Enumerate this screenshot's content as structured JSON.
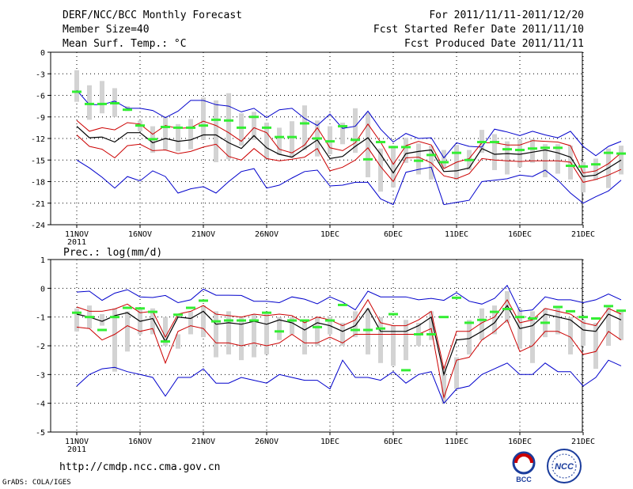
{
  "header": {
    "title": "DERF/NCC/BCC Monthly Forecast",
    "member_size": "Member Size=40",
    "variable_top": "Mean Surf. Temp.: °C",
    "period": "For 2011/11/11-2011/12/20",
    "started": "Fcst Started Refer Date 2011/11/10",
    "produced": "Fcst Produced Date 2011/11/11"
  },
  "footer": {
    "url": "http://cmdp.ncc.cma.gov.cn",
    "credit": "GrADS: COLA/IGES",
    "logo_bcc": "BCC",
    "logo_ncc": "NCC"
  },
  "colors": {
    "mean": "#000000",
    "sd": "#cc0000",
    "extreme": "#0000cc",
    "box": "#d3d3d3",
    "observed": "#33ee33"
  },
  "chart_data": [
    {
      "type": "line",
      "title": "Mean Surf. Temp.: °C",
      "xticks": [
        "11NOV",
        "16NOV",
        "21NOV",
        "26NOV",
        "1DEC",
        "6DEC",
        "11DEC",
        "16DEC",
        "21DEC"
      ],
      "xtick_year": "2011",
      "ylim": [
        -24,
        0
      ],
      "yticks": [
        0,
        -3,
        -6,
        -9,
        -12,
        -15,
        -18,
        -21,
        -24
      ],
      "grid": true,
      "series": [
        {
          "name": "max",
          "values": [
            -5.3,
            -7.3,
            -7.3,
            -6.8,
            -7.8,
            -7.8,
            -8.1,
            -9.1,
            -8.2,
            -6.7,
            -6.7,
            -7.3,
            -7.5,
            -8.3,
            -7.8,
            -9.1,
            -8.0,
            -7.8,
            -9.2,
            -10.2,
            -8.6,
            -10.6,
            -10.3,
            -8.2,
            -10.7,
            -12.5,
            -11.3,
            -12.0,
            -11.9,
            -14.7,
            -12.6,
            -13.1,
            -13.2,
            -10.7,
            -11.1,
            -11.6,
            -11.0,
            -11.5,
            -11.9,
            -11.0,
            -13.1,
            -14.4,
            -13.1,
            -12.4
          ]
        },
        {
          "name": "mean_plus_sd",
          "values": [
            -9.5,
            -11.0,
            -10.5,
            -10.8,
            -9.8,
            -10.0,
            -11.4,
            -10.2,
            -10.6,
            -10.5,
            -9.6,
            -10.2,
            -11.2,
            -12.4,
            -10.5,
            -11.2,
            -13.5,
            -14.0,
            -12.9,
            -10.5,
            -13.3,
            -13.7,
            -12.6,
            -10.0,
            -12.5,
            -15.6,
            -13.0,
            -12.4,
            -12.9,
            -16.2,
            -15.3,
            -14.8,
            -12.6,
            -12.6,
            -12.9,
            -12.9,
            -12.3,
            -12.4,
            -12.5,
            -13.0,
            -16.8,
            -16.5,
            -15.5,
            -14.0
          ]
        },
        {
          "name": "mean",
          "values": [
            -10.3,
            -11.9,
            -11.8,
            -12.5,
            -11.2,
            -11.2,
            -12.6,
            -12.0,
            -12.4,
            -12.2,
            -11.5,
            -11.5,
            -12.6,
            -13.4,
            -11.6,
            -13.3,
            -14.2,
            -14.6,
            -13.4,
            -12.2,
            -14.8,
            -14.5,
            -13.1,
            -11.9,
            -14.2,
            -16.8,
            -14.1,
            -13.8,
            -13.6,
            -16.6,
            -16.5,
            -16.1,
            -13.4,
            -14.2,
            -14.1,
            -14.2,
            -13.9,
            -13.6,
            -14.0,
            -14.6,
            -17.3,
            -17.1,
            -16.1,
            -15.0
          ]
        },
        {
          "name": "mean_minus_sd",
          "values": [
            -11.5,
            -13.1,
            -13.5,
            -14.7,
            -13.0,
            -12.8,
            -13.7,
            -13.6,
            -14.1,
            -13.8,
            -13.2,
            -12.8,
            -14.5,
            -15.0,
            -13.4,
            -14.8,
            -15.1,
            -14.9,
            -14.6,
            -13.4,
            -16.5,
            -16.0,
            -15.0,
            -13.3,
            -15.9,
            -18.0,
            -14.7,
            -14.6,
            -15.4,
            -17.2,
            -17.6,
            -16.9,
            -14.8,
            -15.0,
            -15.1,
            -15.2,
            -15.1,
            -15.1,
            -15.1,
            -15.3,
            -18.1,
            -17.7,
            -17.1,
            -16.3
          ]
        },
        {
          "name": "min",
          "values": [
            -15.0,
            -16.1,
            -17.4,
            -18.9,
            -17.3,
            -17.9,
            -16.5,
            -17.3,
            -19.6,
            -19.0,
            -18.7,
            -19.6,
            -18.0,
            -16.6,
            -16.2,
            -18.9,
            -18.5,
            -17.5,
            -16.6,
            -16.4,
            -18.6,
            -18.5,
            -18.1,
            -18.1,
            -20.4,
            -21.2,
            -16.7,
            -16.3,
            -16.0,
            -21.2,
            -20.9,
            -20.6,
            -18.0,
            -17.8,
            -17.6,
            -17.1,
            -17.3,
            -16.4,
            -17.8,
            -19.6,
            -21.0,
            -20.1,
            -19.3,
            -17.8
          ]
        },
        {
          "name": "observed",
          "values": [
            -5.5,
            -7.2,
            -7.2,
            -7.1,
            -8.0,
            -10.2,
            -12.1,
            -10.4,
            -10.5,
            -10.5,
            -10.2,
            -9.4,
            -9.5,
            -10.5,
            -9.0,
            -10.5,
            -11.8,
            -11.8,
            -9.9,
            -12.0,
            -12.4,
            -10.3,
            -12.2,
            -14.9,
            -12.5,
            -13.2,
            -13.2,
            -15.1,
            -14.3,
            -15.3,
            -14.0,
            -15.0,
            -12.5,
            -12.5,
            -13.5,
            -13.6,
            -13.4,
            -13.3,
            -13.3,
            -15.8,
            -15.9,
            -15.6,
            -14.0,
            -14.1
          ]
        }
      ],
      "boxes": [
        [
          -2.5,
          -6.9
        ],
        [
          -4.6,
          -9.4
        ],
        [
          -4.0,
          -8.5
        ],
        [
          -5.0,
          -9.0
        ],
        [
          -7.5,
          -8.2
        ],
        [
          -9.5,
          -11.0
        ],
        [
          -10.3,
          -14.0
        ],
        [
          -8.9,
          -13.6
        ],
        [
          -10.0,
          -13.8
        ],
        [
          -9.3,
          -13.5
        ],
        [
          -6.3,
          -12.2
        ],
        [
          -6.7,
          -15.3
        ],
        [
          -5.7,
          -14.9
        ],
        [
          -8.5,
          -13.0
        ],
        [
          -8.3,
          -12.2
        ],
        [
          -9.8,
          -14.9
        ],
        [
          -10.5,
          -14.3
        ],
        [
          -9.6,
          -14.7
        ],
        [
          -7.4,
          -13.6
        ],
        [
          -9.5,
          -14.5
        ],
        [
          -10.3,
          -14.2
        ],
        [
          -9.8,
          -12.8
        ],
        [
          -7.8,
          -14.0
        ],
        [
          -8.4,
          -17.4
        ],
        [
          -13.4,
          -19.4
        ],
        [
          -13.0,
          -18.8
        ],
        [
          -11.9,
          -15.4
        ],
        [
          -12.7,
          -17.0
        ],
        [
          -13.0,
          -17.7
        ],
        [
          -13.6,
          -16.1
        ],
        [
          -12.9,
          -17.8
        ],
        [
          -13.6,
          -16.4
        ],
        [
          -10.8,
          -14.0
        ],
        [
          -11.4,
          -16.4
        ],
        [
          -12.4,
          -17.0
        ],
        [
          -12.2,
          -16.0
        ],
        [
          -12.1,
          -15.4
        ],
        [
          -12.8,
          -17.4
        ],
        [
          -12.8,
          -16.9
        ],
        [
          -13.0,
          -17.7
        ],
        [
          -15.3,
          -19.5
        ],
        [
          -14.8,
          -17.8
        ],
        [
          -13.4,
          -18.9
        ],
        [
          -13.0,
          -17.0
        ]
      ]
    },
    {
      "type": "line",
      "title": "Prec.: log(mm/d)",
      "xticks": [
        "11NOV",
        "16NOV",
        "21NOV",
        "26NOV",
        "1DEC",
        "6DEC",
        "11DEC",
        "16DEC",
        "21DEC"
      ],
      "xtick_year": "2011",
      "ylim": [
        -5,
        1
      ],
      "yticks": [
        1,
        0,
        -1,
        -2,
        -3,
        -4,
        -5
      ],
      "grid": true,
      "series": [
        {
          "name": "max",
          "values": [
            -0.13,
            -0.1,
            -0.42,
            -0.17,
            -0.05,
            -0.3,
            -0.32,
            -0.25,
            -0.5,
            -0.4,
            -0.03,
            -0.24,
            -0.24,
            -0.25,
            -0.45,
            -0.45,
            -0.5,
            -0.3,
            -0.38,
            -0.54,
            -0.3,
            -0.48,
            -0.75,
            -0.1,
            -0.3,
            -0.3,
            -0.3,
            -0.4,
            -0.35,
            -0.42,
            -0.15,
            -0.45,
            -0.55,
            -0.35,
            0.1,
            -0.8,
            -0.75,
            -0.3,
            -0.4,
            -0.4,
            -0.5,
            -0.4,
            -0.2,
            -0.4
          ]
        },
        {
          "name": "mean_plus_sd",
          "values": [
            -0.65,
            -0.8,
            -0.8,
            -0.72,
            -0.55,
            -0.85,
            -0.8,
            -1.7,
            -0.9,
            -0.8,
            -0.6,
            -0.9,
            -0.95,
            -1.0,
            -0.9,
            -0.95,
            -0.9,
            -0.95,
            -1.2,
            -1.0,
            -1.1,
            -1.3,
            -1.1,
            -0.4,
            -1.2,
            -1.3,
            -1.3,
            -1.1,
            -0.8,
            -2.8,
            -1.5,
            -1.5,
            -1.2,
            -1.0,
            -0.4,
            -1.2,
            -1.1,
            -0.7,
            -0.8,
            -0.9,
            -1.2,
            -1.3,
            -0.7,
            -0.9
          ]
        },
        {
          "name": "mean",
          "values": [
            -0.9,
            -1.0,
            -1.15,
            -0.95,
            -0.85,
            -1.15,
            -1.05,
            -1.85,
            -1.0,
            -1.05,
            -0.8,
            -1.25,
            -1.2,
            -1.25,
            -1.15,
            -1.25,
            -1.1,
            -1.2,
            -1.45,
            -1.2,
            -1.3,
            -1.5,
            -1.3,
            -0.7,
            -1.5,
            -1.5,
            -1.5,
            -1.3,
            -1.0,
            -3.0,
            -1.8,
            -1.75,
            -1.5,
            -1.2,
            -0.6,
            -1.4,
            -1.3,
            -0.9,
            -1.0,
            -1.1,
            -1.45,
            -1.5,
            -0.9,
            -1.1
          ]
        },
        {
          "name": "mean_minus_sd",
          "values": [
            -1.35,
            -1.4,
            -1.8,
            -1.6,
            -1.3,
            -1.5,
            -1.4,
            -2.6,
            -1.5,
            -1.3,
            -1.4,
            -1.9,
            -1.9,
            -2.0,
            -1.9,
            -2.0,
            -1.9,
            -1.6,
            -1.9,
            -1.9,
            -1.7,
            -1.9,
            -1.6,
            -1.6,
            -1.6,
            -1.6,
            -1.6,
            -1.6,
            -1.4,
            -3.8,
            -2.5,
            -2.4,
            -1.8,
            -1.5,
            -1.1,
            -2.2,
            -2.0,
            -1.5,
            -1.5,
            -1.7,
            -2.3,
            -2.2,
            -1.5,
            -1.8
          ]
        },
        {
          "name": "min",
          "values": [
            -3.4,
            -3.0,
            -2.8,
            -2.75,
            -2.9,
            -3.0,
            -3.1,
            -3.75,
            -3.1,
            -3.1,
            -2.8,
            -3.3,
            -3.3,
            -3.1,
            -3.2,
            -3.3,
            -3.0,
            -3.1,
            -3.2,
            -3.2,
            -3.5,
            -2.5,
            -3.1,
            -3.1,
            -3.2,
            -2.9,
            -3.3,
            -3.0,
            -2.9,
            -4.0,
            -3.5,
            -3.4,
            -3.0,
            -2.8,
            -2.6,
            -3.0,
            -3.0,
            -2.6,
            -2.9,
            -2.9,
            -3.4,
            -3.1,
            -2.5,
            -2.7
          ]
        },
        {
          "name": "observed",
          "values": [
            -0.85,
            -1.0,
            -1.45,
            -1.0,
            -0.68,
            -0.7,
            -0.82,
            -1.85,
            -0.92,
            -0.68,
            -0.43,
            -1.15,
            -1.12,
            -1.12,
            -1.12,
            -0.85,
            -1.5,
            -1.12,
            -1.12,
            -1.35,
            -1.12,
            -0.58,
            -1.45,
            -1.45,
            -1.4,
            -0.9,
            -2.85,
            -1.6,
            -1.6,
            -1.0,
            -0.33,
            -1.2,
            -1.1,
            -0.82,
            -0.72,
            -1.0,
            -1.05,
            -1.2,
            -0.65,
            -0.8,
            -1.0,
            -1.05,
            -0.62,
            -0.78
          ]
        }
      ],
      "boxes": [
        [
          -0.7,
          -1.5
        ],
        [
          -0.6,
          -1.4
        ],
        [
          -0.9,
          -1.3
        ],
        [
          -0.7,
          -2.9
        ],
        [
          -0.8,
          -2.2
        ],
        [
          -0.7,
          -1.6
        ],
        [
          -0.7,
          -1.6
        ],
        [
          -1.0,
          -2.0
        ],
        [
          -1.6,
          -2.1
        ],
        [
          -0.8,
          -1.6
        ],
        [
          -0.6,
          -1.7
        ],
        [
          -0.8,
          -2.4
        ],
        [
          -0.8,
          -2.3
        ],
        [
          -1.0,
          -2.5
        ],
        [
          -0.9,
          -2.4
        ],
        [
          -0.9,
          -2.3
        ],
        [
          -1.0,
          -1.8
        ],
        [
          -1.0,
          -1.6
        ],
        [
          -1.1,
          -2.3
        ],
        [
          -1.0,
          -2.0
        ],
        [
          -1.0,
          -1.6
        ],
        [
          -1.2,
          -2.0
        ],
        [
          -0.8,
          -1.7
        ],
        [
          -0.7,
          -2.3
        ],
        [
          -1.0,
          -2.6
        ],
        [
          -1.3,
          -2.7
        ],
        [
          -1.1,
          -2.5
        ],
        [
          -1.2,
          -2.0
        ],
        [
          -0.8,
          -1.8
        ],
        [
          -2.7,
          -4.0
        ],
        [
          -2.4,
          -3.5
        ],
        [
          -1.1,
          -2.3
        ],
        [
          -0.7,
          -1.8
        ],
        [
          -0.6,
          -1.6
        ],
        [
          -0.1,
          -1.2
        ],
        [
          -0.7,
          -2.1
        ],
        [
          -0.8,
          -2.6
        ],
        [
          -0.7,
          -1.7
        ],
        [
          -0.7,
          -1.6
        ],
        [
          -1.0,
          -2.3
        ],
        [
          -1.1,
          -2.0
        ],
        [
          -1.2,
          -2.8
        ],
        [
          -0.6,
          -2.0
        ],
        [
          -0.8,
          -1.8
        ]
      ]
    }
  ]
}
